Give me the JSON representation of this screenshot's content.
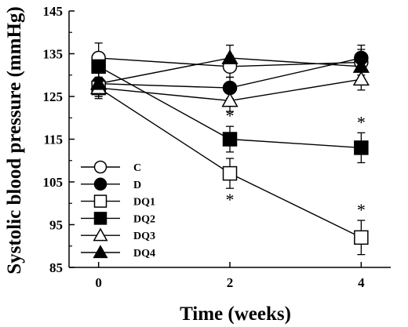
{
  "chart_data": {
    "type": "line",
    "xlabel": "Time (weeks)",
    "ylabel": "Systolic blood pressure (mmHg)",
    "x": [
      0,
      2,
      4
    ],
    "x_ticks": [
      "0",
      "2",
      "4"
    ],
    "y_ticks": [
      "85",
      "95",
      "105",
      "115",
      "125",
      "135",
      "145"
    ],
    "xlim": [
      -0.45,
      4.45
    ],
    "ylim": [
      85,
      145
    ],
    "grid": false,
    "legend_position": "lower-left",
    "significance_marker": "*",
    "series": [
      {
        "name": "C",
        "marker": "circle",
        "filled": false,
        "values": [
          134,
          132,
          133
        ],
        "errors": [
          3.5,
          2.5,
          3
        ]
      },
      {
        "name": "D",
        "marker": "circle",
        "filled": true,
        "values": [
          128,
          127,
          134
        ],
        "errors": [
          3,
          2.5,
          3
        ]
      },
      {
        "name": "DQ1",
        "marker": "square",
        "filled": false,
        "values": [
          127,
          107,
          92
        ],
        "errors": [
          2.5,
          3.5,
          4
        ],
        "significant": [
          false,
          true,
          true
        ],
        "star_side": [
          "",
          "below",
          "above"
        ]
      },
      {
        "name": "DQ2",
        "marker": "square",
        "filled": true,
        "values": [
          132,
          115,
          113
        ],
        "errors": [
          2.5,
          3,
          3.5
        ],
        "significant": [
          false,
          true,
          true
        ],
        "star_side": [
          "",
          "above",
          "above"
        ]
      },
      {
        "name": "DQ3",
        "marker": "triangle",
        "filled": false,
        "values": [
          127,
          124,
          129
        ],
        "errors": [
          2,
          2.5,
          2.5
        ]
      },
      {
        "name": "DQ4",
        "marker": "triangle",
        "filled": true,
        "values": [
          128,
          134,
          132
        ],
        "errors": [
          2.5,
          3,
          3
        ]
      }
    ]
  }
}
